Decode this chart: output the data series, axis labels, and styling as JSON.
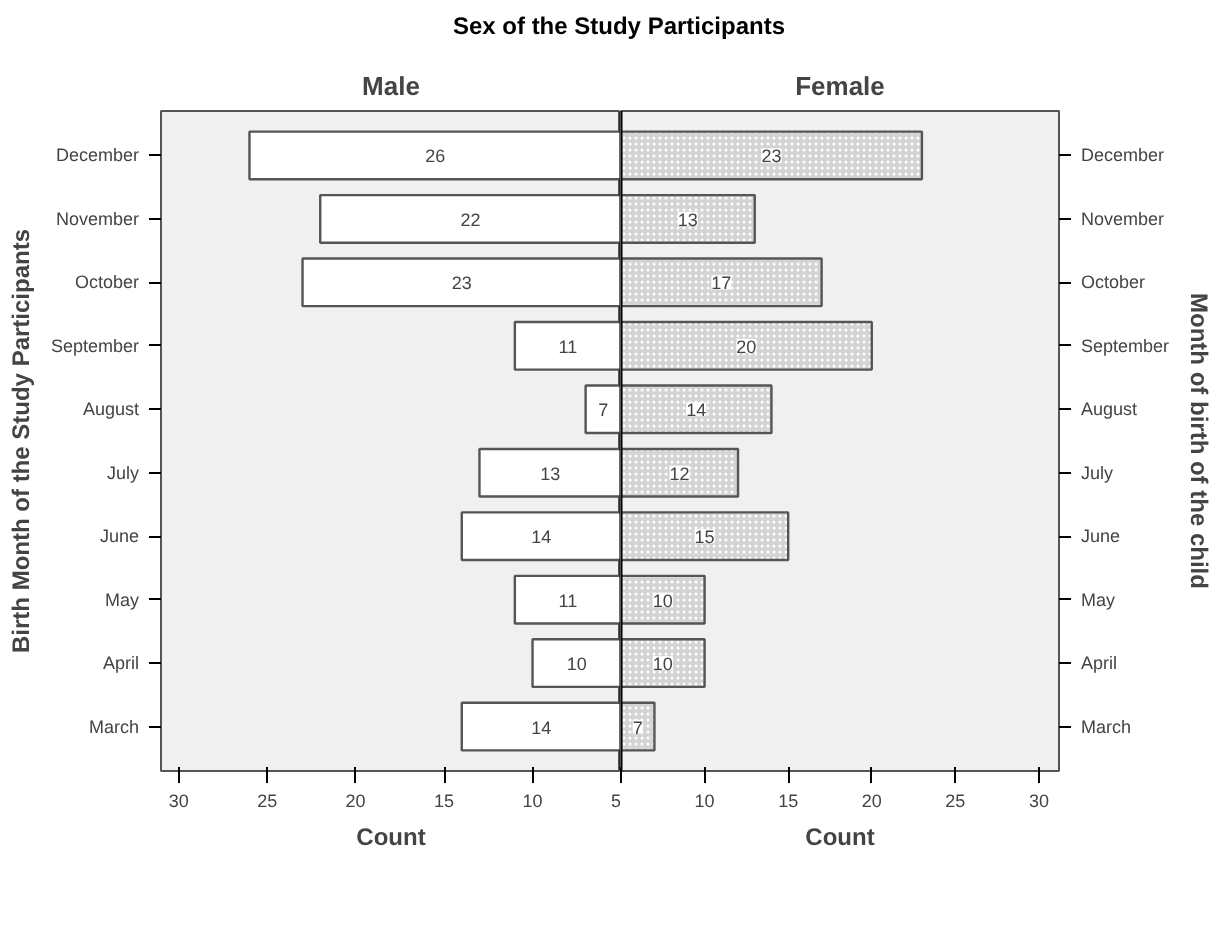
{
  "chart_data": [
    {
      "type": "bar",
      "orientation": "horizontal",
      "title": "Sex of the Study Participants",
      "xlabel": "Count",
      "ylabel": "Birth Month of the Study Participants",
      "categories": [
        "December",
        "November",
        "October",
        "September",
        "August",
        "July",
        "June",
        "May",
        "April",
        "March"
      ],
      "series": [
        {
          "name": "Male",
          "color": "#ffffff",
          "values": [
            26,
            22,
            23,
            11,
            7,
            13,
            14,
            11,
            10,
            14
          ]
        }
      ],
      "xlim": [
        31,
        5
      ],
      "xticks": [
        30,
        25,
        20,
        15,
        10,
        5
      ],
      "data_labels": true,
      "grid": false
    },
    {
      "type": "bar",
      "orientation": "horizontal",
      "xlabel": "Count",
      "ylabel": "Month of birth of the child",
      "categories": [
        "December",
        "November",
        "October",
        "September",
        "August",
        "July",
        "June",
        "May",
        "April",
        "March"
      ],
      "series": [
        {
          "name": "Female",
          "color": "#d4d4d4",
          "values": [
            23,
            13,
            17,
            20,
            14,
            12,
            15,
            10,
            10,
            7
          ]
        }
      ],
      "xlim": [
        5,
        31.2
      ],
      "xticks": [
        {
          "value": 5,
          "label": null
        },
        10,
        15,
        20,
        25,
        30
      ],
      "data_labels": true,
      "grid": false
    }
  ]
}
